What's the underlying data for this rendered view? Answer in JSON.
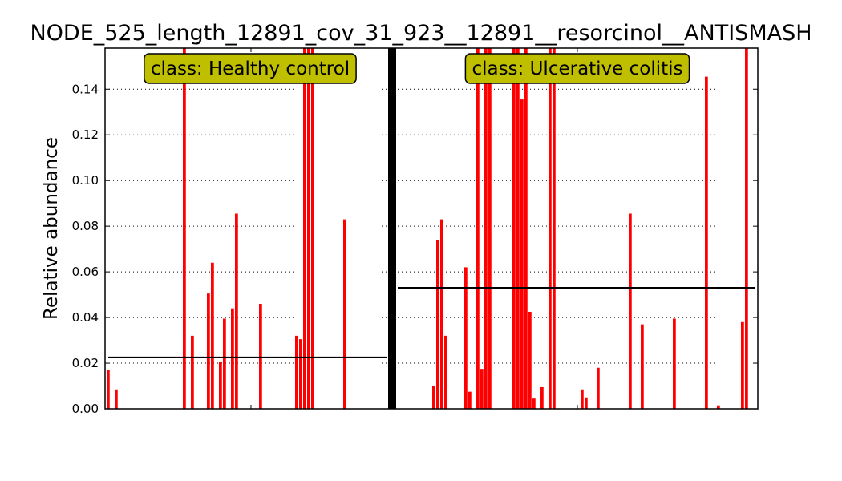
{
  "chart_data": {
    "type": "bar",
    "title": "NODE_525_length_12891_cov_31_923__12891__resorcinol__ANTISMASH",
    "xlabel": "",
    "ylabel": "Relative abundance",
    "ylim": [
      0,
      0.158
    ],
    "yticks": [
      "0.00",
      "0.02",
      "0.04",
      "0.06",
      "0.08",
      "0.10",
      "0.12",
      "0.14"
    ],
    "grid": "horizontal dotted",
    "bar_color": "#ff0000",
    "mean_line_color": "#000000",
    "label_box_color": "#bfbf00",
    "groups": [
      {
        "label": "class: Healthy control",
        "mean": 0.0225,
        "values": [
          0.017,
          0,
          0.0085,
          0,
          0,
          0,
          0,
          0,
          0,
          0,
          0,
          0,
          0,
          0,
          0,
          0,
          0,
          0,
          0,
          0.158,
          0,
          0.032,
          0,
          0,
          0,
          0.0505,
          0.064,
          0,
          0.0205,
          0.0395,
          0,
          0.044,
          0.0855,
          0,
          0,
          0,
          0,
          0,
          0.046,
          0,
          0,
          0,
          0,
          0,
          0,
          0,
          0,
          0.032,
          0.0305,
          0.158,
          0.158,
          0.158,
          0,
          0,
          0,
          0,
          0,
          0,
          0,
          0.083,
          0,
          0,
          0,
          0,
          0,
          0,
          0,
          0,
          0,
          0
        ]
      },
      {
        "label": "class: Ulcerative colitis",
        "mean": 0.053,
        "values": [
          0,
          0,
          0,
          0,
          0,
          0,
          0,
          0,
          0,
          0.01,
          0.074,
          0.083,
          0.032,
          0,
          0,
          0,
          0,
          0.062,
          0.0075,
          0,
          0.158,
          0.0175,
          0.158,
          0.158,
          0,
          0,
          0,
          0,
          0,
          0.158,
          0.158,
          0.1355,
          0.158,
          0.0425,
          0.0045,
          0,
          0.0095,
          0,
          0.158,
          0.158,
          0,
          0,
          0,
          0,
          0,
          0,
          0.0085,
          0.005,
          0,
          0,
          0.018,
          0,
          0,
          0,
          0,
          0,
          0,
          0,
          0.0855,
          0,
          0,
          0.037,
          0,
          0,
          0,
          0,
          0,
          0,
          0,
          0.0395,
          0,
          0,
          0,
          0,
          0,
          0,
          0,
          0.1455,
          0,
          0,
          0.0015,
          0,
          0,
          0,
          0,
          0,
          0.038,
          0.158,
          0
        ]
      }
    ]
  }
}
